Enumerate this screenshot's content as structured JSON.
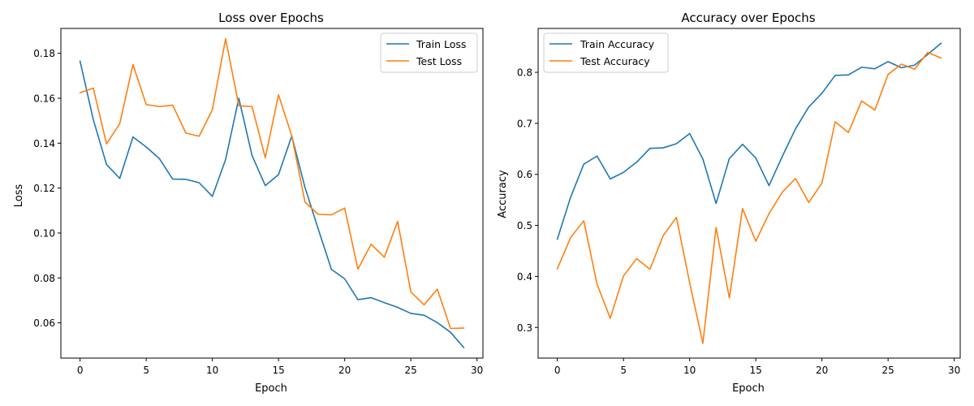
{
  "chart_data": [
    {
      "type": "line",
      "title": "Loss over Epochs",
      "xlabel": "Epoch",
      "ylabel": "Loss",
      "xlim": [
        -1.45,
        30.45
      ],
      "ylim": [
        0.0443,
        0.1911
      ],
      "xticks": [
        0,
        5,
        10,
        15,
        20,
        25,
        30
      ],
      "yticks": [
        0.06,
        0.08,
        0.1,
        0.12,
        0.14,
        0.16,
        0.18
      ],
      "ytick_decimals": 2,
      "grid": false,
      "legend": "upper right",
      "x": [
        0,
        1,
        2,
        3,
        4,
        5,
        6,
        7,
        8,
        9,
        10,
        11,
        12,
        13,
        14,
        15,
        16,
        17,
        18,
        19,
        20,
        21,
        22,
        23,
        24,
        25,
        26,
        27,
        28,
        29
      ],
      "series": [
        {
          "name": "Train Loss",
          "color": "#1f77b4",
          "values": [
            0.1765,
            0.1505,
            0.1305,
            0.1243,
            0.1428,
            0.1383,
            0.1331,
            0.124,
            0.1239,
            0.1224,
            0.1163,
            0.1327,
            0.16,
            0.1345,
            0.1211,
            0.126,
            0.1432,
            0.1203,
            0.1018,
            0.0838,
            0.0796,
            0.0703,
            0.0712,
            0.069,
            0.0669,
            0.0642,
            0.0634,
            0.0601,
            0.0558,
            0.049
          ]
        },
        {
          "name": "Test Loss",
          "color": "#ff7f0e",
          "values": [
            0.1625,
            0.1645,
            0.1397,
            0.1487,
            0.175,
            0.1572,
            0.1563,
            0.1569,
            0.1445,
            0.1431,
            0.1549,
            0.1865,
            0.1567,
            0.1563,
            0.1335,
            0.1615,
            0.1433,
            0.1138,
            0.1083,
            0.1081,
            0.1111,
            0.0839,
            0.095,
            0.0892,
            0.1052,
            0.0738,
            0.068,
            0.075,
            0.0575,
            0.0577
          ]
        }
      ]
    },
    {
      "type": "line",
      "title": "Accuracy over Epochs",
      "xlabel": "Epoch",
      "ylabel": "Accuracy",
      "xlim": [
        -1.45,
        30.45
      ],
      "ylim": [
        0.24,
        0.886
      ],
      "xticks": [
        0,
        5,
        10,
        15,
        20,
        25,
        30
      ],
      "yticks": [
        0.3,
        0.4,
        0.5,
        0.6,
        0.7,
        0.8
      ],
      "ytick_decimals": 1,
      "grid": false,
      "legend": "upper left",
      "x": [
        0,
        1,
        2,
        3,
        4,
        5,
        6,
        7,
        8,
        9,
        10,
        11,
        12,
        13,
        14,
        15,
        16,
        17,
        18,
        19,
        20,
        21,
        22,
        23,
        24,
        25,
        26,
        27,
        28,
        29
      ],
      "series": [
        {
          "name": "Train Accuracy",
          "color": "#1f77b4",
          "values": [
            0.473,
            0.555,
            0.62,
            0.636,
            0.591,
            0.604,
            0.624,
            0.651,
            0.652,
            0.66,
            0.68,
            0.63,
            0.543,
            0.631,
            0.659,
            0.632,
            0.578,
            0.635,
            0.689,
            0.732,
            0.759,
            0.794,
            0.795,
            0.81,
            0.807,
            0.821,
            0.809,
            0.814,
            0.835,
            0.857
          ]
        },
        {
          "name": "Test Accuracy",
          "color": "#ff7f0e",
          "values": [
            0.415,
            0.476,
            0.509,
            0.385,
            0.318,
            0.401,
            0.435,
            0.414,
            0.48,
            0.516,
            0.388,
            0.269,
            0.496,
            0.358,
            0.533,
            0.469,
            0.523,
            0.565,
            0.592,
            0.545,
            0.583,
            0.703,
            0.682,
            0.744,
            0.726,
            0.796,
            0.816,
            0.806,
            0.839,
            0.828
          ]
        }
      ]
    }
  ]
}
